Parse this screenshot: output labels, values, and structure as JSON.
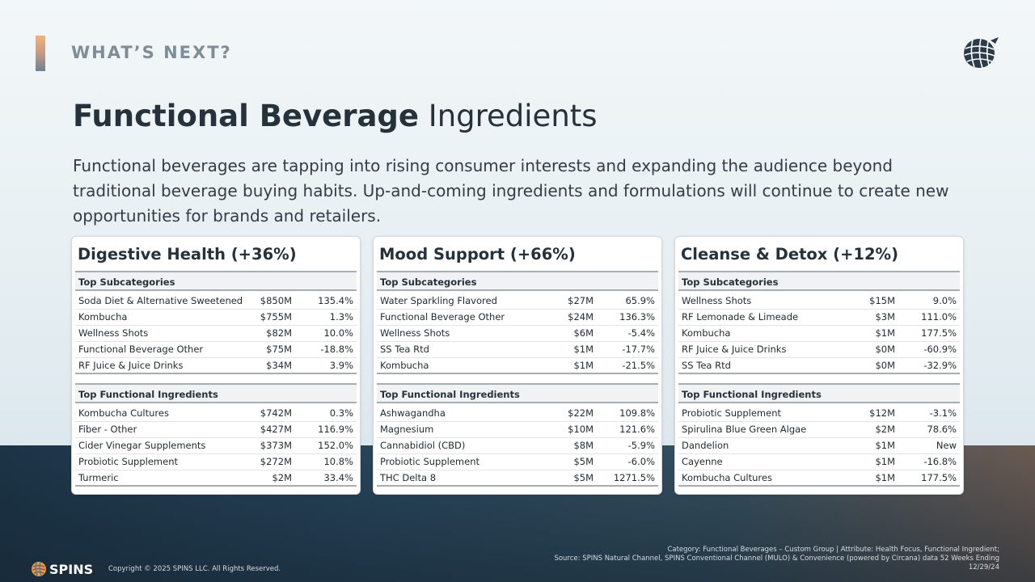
{
  "header": {
    "kicker": "WHAT’S NEXT?"
  },
  "title": {
    "bold": "Functional Beverage",
    "light": "Ingredients"
  },
  "intro": "Functional beverages are tapping into rising consumer interests and expanding the audience beyond traditional beverage buying habits. Up-and-coming ingredients and formulations will continue to create new opportunities for brands and retailers.",
  "cards": [
    {
      "title": "Digestive Health (+36%)",
      "sub_head": "Top Subcategories",
      "subcategories": [
        {
          "name": "Soda Diet & Alternative Sweetened",
          "value": "$850M",
          "change": "135.4%"
        },
        {
          "name": "Kombucha",
          "value": "$755M",
          "change": "1.3%"
        },
        {
          "name": "Wellness Shots",
          "value": "$82M",
          "change": "10.0%"
        },
        {
          "name": "Functional Beverage Other",
          "value": "$75M",
          "change": "-18.8%"
        },
        {
          "name": "RF Juice & Juice Drinks",
          "value": "$34M",
          "change": "3.9%"
        }
      ],
      "ing_head": "Top Functional Ingredients",
      "ingredients": [
        {
          "name": "Kombucha Cultures",
          "value": "$742M",
          "change": "0.3%"
        },
        {
          "name": "Fiber - Other",
          "value": "$427M",
          "change": "116.9%"
        },
        {
          "name": "Cider Vinegar Supplements",
          "value": "$373M",
          "change": "152.0%"
        },
        {
          "name": "Probiotic Supplement",
          "value": "$272M",
          "change": "10.8%"
        },
        {
          "name": "Turmeric",
          "value": "$2M",
          "change": "33.4%"
        }
      ]
    },
    {
      "title": "Mood Support (+66%)",
      "sub_head": "Top Subcategories",
      "subcategories": [
        {
          "name": "Water Sparkling Flavored",
          "value": "$27M",
          "change": "65.9%"
        },
        {
          "name": "Functional Beverage Other",
          "value": "$24M",
          "change": "136.3%"
        },
        {
          "name": "Wellness Shots",
          "value": "$6M",
          "change": "-5.4%"
        },
        {
          "name": "SS Tea Rtd",
          "value": "$1M",
          "change": "-17.7%"
        },
        {
          "name": "Kombucha",
          "value": "$1M",
          "change": "-21.5%"
        }
      ],
      "ing_head": "Top Functional Ingredients",
      "ingredients": [
        {
          "name": "Ashwagandha",
          "value": "$22M",
          "change": "109.8%"
        },
        {
          "name": "Magnesium",
          "value": "$10M",
          "change": "121.6%"
        },
        {
          "name": "Cannabidiol (CBD)",
          "value": "$8M",
          "change": "-5.9%"
        },
        {
          "name": "Probiotic Supplement",
          "value": "$5M",
          "change": "-6.0%"
        },
        {
          "name": "THC Delta 8",
          "value": "$5M",
          "change": "1271.5%"
        }
      ]
    },
    {
      "title": "Cleanse & Detox (+12%)",
      "sub_head": "Top Subcategories",
      "subcategories": [
        {
          "name": "Wellness Shots",
          "value": "$15M",
          "change": "9.0%"
        },
        {
          "name": "RF Lemonade & Limeade",
          "value": "$3M",
          "change": "111.0%"
        },
        {
          "name": "Kombucha",
          "value": "$1M",
          "change": "177.5%"
        },
        {
          "name": "RF Juice & Juice Drinks",
          "value": "$0M",
          "change": "-60.9%"
        },
        {
          "name": "SS Tea Rtd",
          "value": "$0M",
          "change": "-32.9%"
        }
      ],
      "ing_head": "Top Functional Ingredients",
      "ingredients": [
        {
          "name": "Probiotic Supplement",
          "value": "$12M",
          "change": "-3.1%"
        },
        {
          "name": "Spirulina Blue Green Algae",
          "value": "$2M",
          "change": "78.6%"
        },
        {
          "name": "Dandelion",
          "value": "$1M",
          "change": "New"
        },
        {
          "name": "Cayenne",
          "value": "$1M",
          "change": "-16.8%"
        },
        {
          "name": "Kombucha Cultures",
          "value": "$1M",
          "change": "177.5%"
        }
      ]
    }
  ],
  "footer": {
    "logo_text": "SPINS",
    "copyright": "Copyright © 2025 SPINS LLC. All Rights Reserved.",
    "source_line1": "Category: Functional Beverages – Custom Group | Attribute: Health Focus, Functional Ingredient;",
    "source_line2": "Source: SPINS Natural Channel, SPINS Conventional Channel (MULO) & Convenience (powered by Circana) data 52 Weeks Ending",
    "source_line3": "12/29/24"
  },
  "colors": {
    "accent_top": "#f3b27a",
    "title_text": "#26323b",
    "kicker_text": "#7e8d97",
    "band_dark": "#1c3446"
  }
}
